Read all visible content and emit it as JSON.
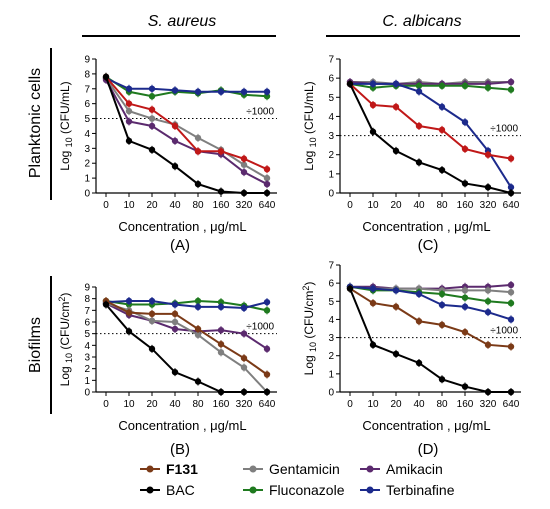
{
  "figure": {
    "col_titles": [
      "S. aureus",
      "C. albicans"
    ],
    "row_titles": [
      "Planktonic cells",
      "Biofilms"
    ],
    "legend": [
      "F131",
      "BAC",
      "Gentamicin",
      "Fluconazole",
      "Amikacin",
      "Terbinafine"
    ]
  },
  "colors": {
    "F131": "#7b3a17",
    "BAC": "#000000",
    "Gentamicin": "#7f7f7f",
    "Fluconazole": "#1f7a1f",
    "Amikacin": "#5b2a6e",
    "Terbinafine": "#1c2a8c",
    "F131_planktonic": "#c01818"
  },
  "chart_data": [
    {
      "type": "line",
      "panel": "A",
      "xlabel": "Concentration , μg/mL",
      "ylabel": "Log 10 (CFU/mL)",
      "categories": [
        "0",
        "10",
        "20",
        "40",
        "80",
        "160",
        "320",
        "640"
      ],
      "ylim": [
        0,
        9
      ],
      "yticks": [
        0,
        1,
        2,
        3,
        4,
        5,
        6,
        7,
        8,
        9
      ],
      "threshold": 5,
      "threshold_label": "÷1000",
      "series": [
        {
          "name": "Fluconazole",
          "values": [
            7.8,
            6.8,
            6.5,
            6.8,
            6.7,
            6.9,
            6.6,
            6.5
          ]
        },
        {
          "name": "Terbinafine",
          "values": [
            7.7,
            7.0,
            7.0,
            6.9,
            6.8,
            6.8,
            6.8,
            6.8
          ]
        },
        {
          "name": "Gentamicin",
          "values": [
            7.7,
            5.5,
            5.0,
            4.6,
            3.7,
            2.9,
            1.9,
            1.0
          ]
        },
        {
          "name": "Amikacin",
          "values": [
            7.6,
            4.8,
            4.5,
            3.5,
            2.8,
            2.6,
            1.4,
            0.6
          ]
        },
        {
          "name": "F131",
          "values": [
            7.8,
            6.0,
            5.6,
            4.5,
            2.8,
            2.8,
            2.3,
            1.6
          ]
        },
        {
          "name": "BAC",
          "values": [
            7.8,
            3.5,
            2.9,
            1.8,
            0.6,
            0.1,
            0.0,
            0.0
          ]
        }
      ]
    },
    {
      "type": "line",
      "panel": "C",
      "xlabel": "Concentration , μg/mL",
      "ylabel": "Log 10 (CFU/mL)",
      "categories": [
        "0",
        "10",
        "20",
        "40",
        "80",
        "160",
        "320",
        "640"
      ],
      "ylim": [
        0,
        7
      ],
      "yticks": [
        0,
        1,
        2,
        3,
        4,
        5,
        6,
        7
      ],
      "threshold": 3,
      "threshold_label": "÷1000",
      "series": [
        {
          "name": "Gentamicin",
          "values": [
            5.8,
            5.8,
            5.7,
            5.8,
            5.7,
            5.8,
            5.8,
            5.8
          ]
        },
        {
          "name": "Amikacin",
          "values": [
            5.8,
            5.7,
            5.7,
            5.7,
            5.7,
            5.7,
            5.7,
            5.8
          ]
        },
        {
          "name": "Fluconazole",
          "values": [
            5.7,
            5.5,
            5.6,
            5.6,
            5.6,
            5.6,
            5.5,
            5.4
          ]
        },
        {
          "name": "Terbinafine",
          "values": [
            5.7,
            5.7,
            5.7,
            5.3,
            4.5,
            3.7,
            2.2,
            0.3
          ]
        },
        {
          "name": "F131",
          "values": [
            5.7,
            4.6,
            4.5,
            3.5,
            3.3,
            2.3,
            2.0,
            1.8
          ]
        },
        {
          "name": "BAC",
          "values": [
            5.7,
            3.2,
            2.2,
            1.6,
            1.2,
            0.5,
            0.3,
            0.0
          ]
        }
      ]
    },
    {
      "type": "line",
      "panel": "B",
      "xlabel": "Concentration , μg/mL",
      "ylabel": "Log 10 (CFU/cm2)",
      "categories": [
        "0",
        "10",
        "20",
        "40",
        "80",
        "160",
        "320",
        "640"
      ],
      "ylim": [
        0,
        9
      ],
      "yticks": [
        0,
        1,
        2,
        3,
        4,
        5,
        6,
        7,
        8,
        9
      ],
      "threshold": 5,
      "threshold_label": "÷1000",
      "series": [
        {
          "name": "Fluconazole",
          "values": [
            7.8,
            7.5,
            7.5,
            7.6,
            7.8,
            7.7,
            7.4,
            7.0
          ]
        },
        {
          "name": "Terbinafine",
          "values": [
            7.7,
            7.8,
            7.8,
            7.5,
            7.3,
            7.3,
            7.2,
            7.7
          ]
        },
        {
          "name": "Amikacin",
          "values": [
            7.6,
            6.6,
            6.1,
            5.4,
            5.2,
            5.3,
            5.0,
            3.7
          ]
        },
        {
          "name": "Gentamicin",
          "values": [
            7.6,
            7.0,
            6.1,
            6.0,
            4.9,
            3.4,
            2.1,
            0.0
          ]
        },
        {
          "name": "F131",
          "values": [
            7.8,
            6.8,
            6.7,
            6.7,
            5.4,
            4.1,
            2.9,
            1.5
          ]
        },
        {
          "name": "BAC",
          "values": [
            7.5,
            5.2,
            3.7,
            1.7,
            0.9,
            0.0,
            0.0,
            0.0
          ]
        }
      ]
    },
    {
      "type": "line",
      "panel": "D",
      "xlabel": "Concentration , μg/mL",
      "ylabel": "Log 10 (CFU/cm2)",
      "categories": [
        "0",
        "10",
        "20",
        "40",
        "80",
        "160",
        "320",
        "640"
      ],
      "ylim": [
        0,
        7
      ],
      "yticks": [
        0,
        1,
        2,
        3,
        4,
        5,
        6,
        7
      ],
      "threshold": 3,
      "threshold_label": "÷1000",
      "series": [
        {
          "name": "Amikacin",
          "values": [
            5.8,
            5.8,
            5.7,
            5.7,
            5.7,
            5.8,
            5.8,
            5.9
          ]
        },
        {
          "name": "Gentamicin",
          "values": [
            5.8,
            5.7,
            5.7,
            5.7,
            5.6,
            5.6,
            5.6,
            5.5
          ]
        },
        {
          "name": "Fluconazole",
          "values": [
            5.8,
            5.6,
            5.6,
            5.5,
            5.4,
            5.2,
            5.0,
            4.9
          ]
        },
        {
          "name": "Terbinafine",
          "values": [
            5.8,
            5.7,
            5.6,
            5.4,
            4.8,
            4.7,
            4.4,
            4.0
          ]
        },
        {
          "name": "F131",
          "values": [
            5.7,
            4.9,
            4.7,
            3.9,
            3.7,
            3.3,
            2.6,
            2.5
          ]
        },
        {
          "name": "BAC",
          "values": [
            5.7,
            2.6,
            2.1,
            1.6,
            0.7,
            0.3,
            0.0,
            0.0
          ]
        }
      ]
    }
  ],
  "panel_labels": [
    "(A)",
    "(C)",
    "(B)",
    "(D)"
  ]
}
